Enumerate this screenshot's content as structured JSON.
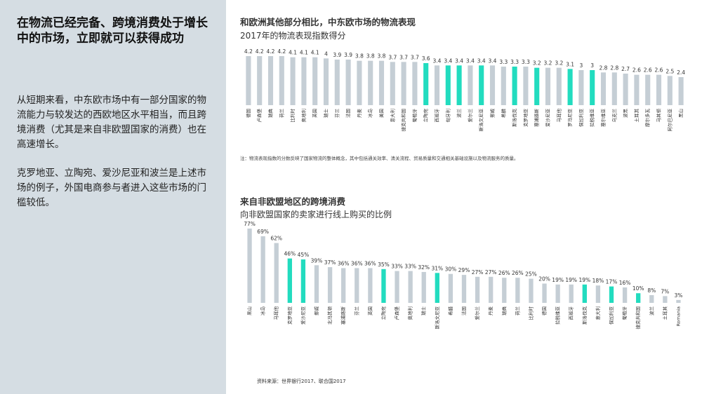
{
  "left": {
    "title": "在物流已经完备、跨境消费处于增长中的市场，立即就可以获得成功",
    "paragraphs": [
      "从短期来看，中东欧市场中有一部分国家的物流能力与较发达的西欧地区水平相当，而且跨境消费（尤其是来自非欧盟国家的消费）也在高速增长。",
      "克罗地亚、立陶宛、爱沙尼亚和波兰是上述市场的例子，外国电商参与者进入这些市场的门槛较低。"
    ]
  },
  "chart_data": [
    {
      "type": "bar",
      "title": "和欧洲其他部分相比，中东欧市场的物流表现",
      "subtitle": "2017年的物流表现指数得分",
      "note": "注：物流表现指数的分数反映了国家物流的整体概念，其中包括通关效率、清关流程、贸易质量和交通相关基础设施以及物流服务的质量。",
      "categories": [
        "德国",
        "卢森堡",
        "瑞典",
        "荷兰",
        "比利时",
        "奥地利",
        "英国",
        "瑞士",
        "芬兰",
        "法国",
        "丹麦",
        "冰岛",
        "美国",
        "意大利",
        "捷克共和国",
        "葡萄牙",
        "立陶宛",
        "西班牙",
        "匈牙利",
        "波兰",
        "爱尔兰",
        "斯洛文尼亚",
        "挪威",
        "希腊",
        "斯洛伐克",
        "克罗地亚",
        "塞浦路斯",
        "爱沙尼亚",
        "马耳他",
        "罗马尼亚",
        "保加利亚",
        "拉脱维亚",
        "塞尔维亚",
        "乌克兰",
        "波黑",
        "土耳其",
        "摩尔多瓦",
        "马其顿",
        "阿尔巴尼亚",
        "黑山"
      ],
      "values": [
        4.2,
        4.2,
        4.2,
        4.2,
        4.1,
        4.1,
        4.1,
        4,
        3.9,
        3.9,
        3.8,
        3.8,
        3.8,
        3.7,
        3.7,
        3.7,
        3.6,
        3.4,
        3.4,
        3.4,
        3.4,
        3.4,
        3.4,
        3.3,
        3.3,
        3.3,
        3.2,
        3.2,
        3.2,
        3.1,
        3,
        3,
        2.8,
        2.8,
        2.7,
        2.6,
        2.6,
        2.6,
        2.5,
        2.4
      ],
      "bar_colors": [
        "#c5ced5",
        "#c5ced5",
        "#c5ced5",
        "#c5ced5",
        "#c5ced5",
        "#c5ced5",
        "#c5ced5",
        "#c5ced5",
        "#c5ced5",
        "#c5ced5",
        "#c5ced5",
        "#c5ced5",
        "#c5ced5",
        "#c5ced5",
        "#c5ced5",
        "#c5ced5",
        "#22dcbf",
        "#c5ced5",
        "#22dcbf",
        "#22dcbf",
        "#c5ced5",
        "#22dcbf",
        "#c5ced5",
        "#c5ced5",
        "#22dcbf",
        "#c5ced5",
        "#22dcbf",
        "#c5ced5",
        "#c5ced5",
        "#22dcbf",
        "#c5ced5",
        "#22dcbf",
        "#c5ced5",
        "#c5ced5",
        "#c5ced5",
        "#c5ced5",
        "#c5ced5",
        "#c5ced5",
        "#c5ced5",
        "#c5ced5"
      ]
    },
    {
      "type": "bar",
      "title": "来自非欧盟地区的跨境消费",
      "subtitle": "向非欧盟国家的卖家进行线上购买的比例",
      "categories": [
        "黑山",
        "冰岛",
        "马耳他",
        "克罗地亚",
        "爱沙尼亚",
        "挪威",
        "北马其顿",
        "塞浦路斯",
        "芬兰",
        "英国",
        "立陶宛",
        "卢森堡",
        "奥地利",
        "瑞士",
        "斯洛文尼亚",
        "希腊",
        "法国",
        "爱尔兰",
        "丹麦",
        "瑞典",
        "荷兰",
        "比利时",
        "德国",
        "拉脱维亚",
        "西班牙",
        "斯洛伐克",
        "意大利",
        "保加利亚",
        "葡萄牙",
        "捷克共和国",
        "波兰",
        "土耳其",
        "Romania"
      ],
      "values": [
        77,
        69,
        62,
        46,
        45,
        39,
        37,
        36,
        36,
        36,
        35,
        33,
        33,
        32,
        31,
        30,
        29,
        27,
        27,
        26,
        26,
        25,
        20,
        19,
        19,
        19,
        18,
        17,
        16,
        10,
        8,
        7,
        3
      ],
      "value_labels": [
        "77%",
        "69%",
        "62%",
        "46%",
        "45%",
        "39%",
        "37%",
        "36%",
        "36%",
        "36%",
        "35%",
        "33%",
        "33%",
        "32%",
        "31%",
        "30%",
        "29%",
        "27%",
        "27%",
        "26%",
        "26%",
        "25%",
        "20%",
        "19%",
        "19%",
        "19%",
        "18%",
        "17%",
        "16%",
        "10%",
        "8%",
        "7%",
        "3%"
      ],
      "bar_colors": [
        "#c5ced5",
        "#c5ced5",
        "#c5ced5",
        "#22dcbf",
        "#22dcbf",
        "#c5ced5",
        "#c5ced5",
        "#c5ced5",
        "#c5ced5",
        "#c5ced5",
        "#22dcbf",
        "#c5ced5",
        "#c5ced5",
        "#c5ced5",
        "#22dcbf",
        "#c5ced5",
        "#c5ced5",
        "#c5ced5",
        "#c5ced5",
        "#c5ced5",
        "#c5ced5",
        "#c5ced5",
        "#c5ced5",
        "#c5ced5",
        "#c5ced5",
        "#22dcbf",
        "#c5ced5",
        "#22dcbf",
        "#c5ced5",
        "#22dcbf",
        "#c5ced5",
        "#c5ced5",
        "#c5ced5"
      ]
    }
  ],
  "source": "资料来源：世界银行2017、联合国2017"
}
